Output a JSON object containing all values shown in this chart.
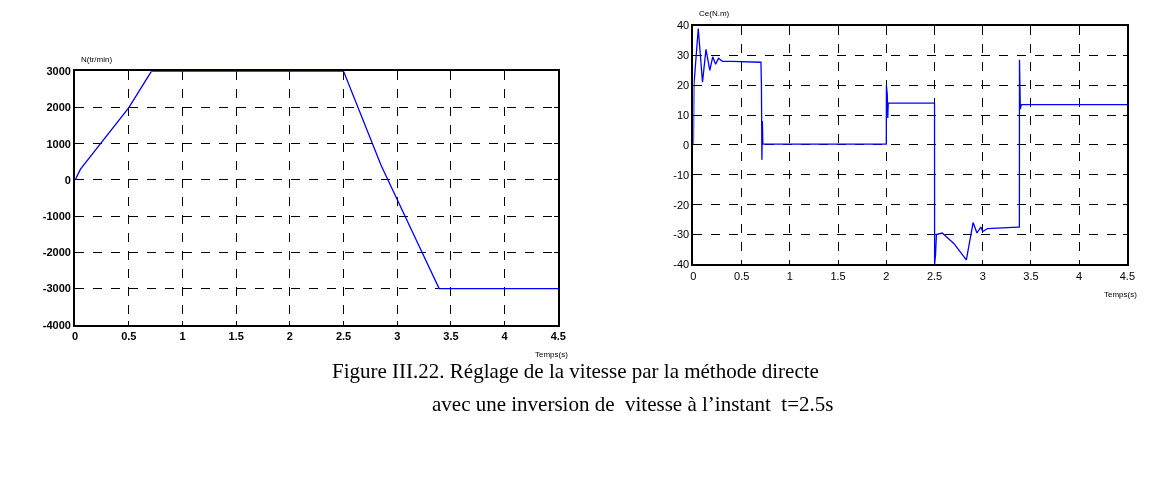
{
  "chart_data": [
    {
      "type": "line",
      "xlabel": "Temps(s)",
      "ylabel": "N(tr/min)",
      "grid": true,
      "line_style": "solid",
      "xlim": [
        0,
        4.5
      ],
      "xticks": [
        0,
        0.5,
        1,
        1.5,
        2,
        2.5,
        3,
        3.5,
        4,
        4.5
      ],
      "ylim": [
        -4000,
        3000
      ],
      "yticks": [
        -4000,
        -3000,
        -2000,
        -1000,
        0,
        1000,
        2000,
        3000
      ],
      "x": [
        0,
        0.05,
        0.5,
        0.71,
        2.5,
        2.85,
        3.39,
        4.5
      ],
      "series": [
        {
          "color": "#0000ff",
          "values": [
            0,
            300,
            2000,
            3000,
            3000,
            400,
            -3000,
            -3000
          ]
        }
      ],
      "annotations": [
        "Figure III.22. Réglage de la vitesse par la méthode directe",
        "avec une inversion de  vitesse à l’instant  t=2.5s"
      ]
    },
    {
      "type": "line",
      "xlabel": "Temps(s)",
      "ylabel": "Ce(N.m)",
      "grid": true,
      "line_style": "solid",
      "xlim": [
        0,
        4.5
      ],
      "xticks": [
        0,
        0.5,
        1,
        1.5,
        2,
        2.5,
        3,
        3.5,
        4,
        4.5
      ],
      "ylim": [
        -40,
        40
      ],
      "yticks": [
        -40,
        -30,
        -20,
        -10,
        0,
        10,
        20,
        30,
        40
      ],
      "x": [
        0,
        0.005,
        0.05,
        0.094,
        0.13,
        0.17,
        0.2,
        0.23,
        0.26,
        0.3,
        0.4,
        0.7,
        0.705,
        0.71,
        0.715,
        0.72,
        2.0,
        2.001,
        2.01,
        2.015,
        2.02,
        2.5,
        2.501,
        2.51,
        2.52,
        2.58,
        2.7,
        2.83,
        2.9,
        2.94,
        2.98,
        3.0,
        3.05,
        3.38,
        3.381,
        3.39,
        3.4,
        4.5
      ],
      "series": [
        {
          "color": "#0000ff",
          "values": [
            0,
            20,
            39,
            21,
            32,
            25,
            29.5,
            27,
            29,
            28,
            28,
            27.7,
            20,
            -5,
            8,
            0.3,
            0.3,
            20,
            17,
            9,
            14,
            14,
            -40,
            -37,
            -30,
            -29.5,
            -33,
            -38.5,
            -26,
            -29.5,
            -27.5,
            -29,
            -28,
            -27.5,
            28.5,
            12,
            13.5,
            13.5
          ]
        }
      ]
    }
  ]
}
